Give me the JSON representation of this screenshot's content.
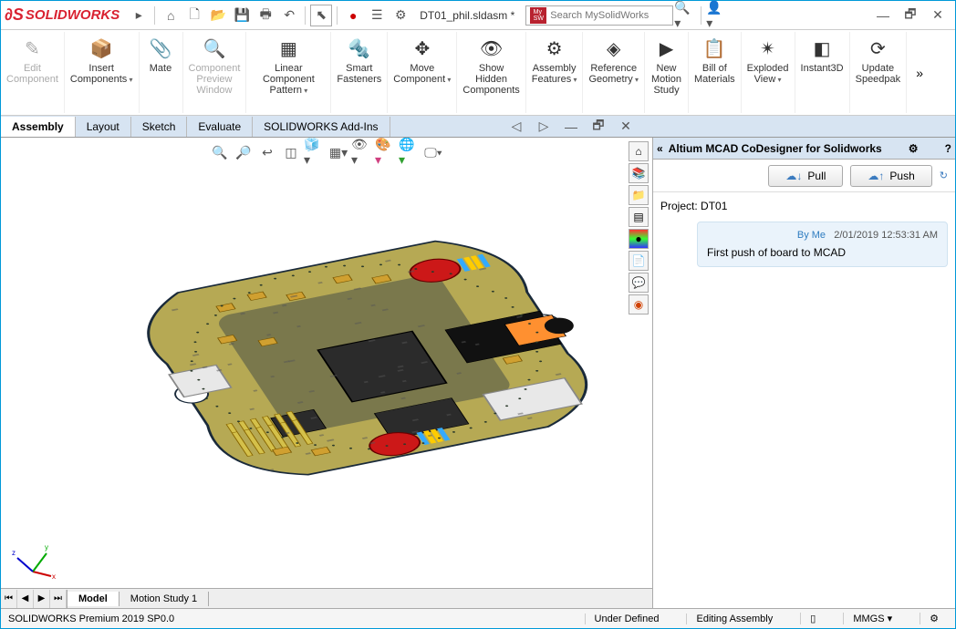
{
  "app": {
    "brand": "SOLIDWORKS",
    "filename": "DT01_phil.sldasm *",
    "search_placeholder": "Search MySolidWorks"
  },
  "ribbon": [
    {
      "label": "Edit\nComponent",
      "icon": "✎",
      "disabled": true
    },
    {
      "label": "Insert\nComponents",
      "icon": "📦",
      "arrow": true
    },
    {
      "label": "Mate",
      "icon": "📎"
    },
    {
      "label": "Component\nPreview\nWindow",
      "icon": "🔍",
      "disabled": true
    },
    {
      "label": "Linear Component\nPattern",
      "icon": "▦",
      "arrow": true
    },
    {
      "label": "Smart\nFasteners",
      "icon": "🔩"
    },
    {
      "label": "Move\nComponent",
      "icon": "✥",
      "arrow": true
    },
    {
      "label": "Show\nHidden\nComponents",
      "icon": "👁"
    },
    {
      "label": "Assembly\nFeatures",
      "icon": "⚙",
      "arrow": true
    },
    {
      "label": "Reference\nGeometry",
      "icon": "◈",
      "arrow": true
    },
    {
      "label": "New\nMotion\nStudy",
      "icon": "▶"
    },
    {
      "label": "Bill of\nMaterials",
      "icon": "📋"
    },
    {
      "label": "Exploded\nView",
      "icon": "✴",
      "arrow": true
    },
    {
      "label": "Instant3D",
      "icon": "◧"
    },
    {
      "label": "Update\nSpeedpak",
      "icon": "⟳"
    }
  ],
  "tabs": [
    "Assembly",
    "Layout",
    "Sketch",
    "Evaluate",
    "SOLIDWORKS Add-Ins"
  ],
  "active_tab": "Assembly",
  "bottom_tabs": [
    "Model",
    "Motion Study 1"
  ],
  "active_bottom_tab": "Model",
  "panel": {
    "title": "Altium MCAD CoDesigner for Solidworks",
    "pull_label": "Pull",
    "push_label": "Push",
    "project_label": "Project:",
    "project_name": "DT01",
    "message": {
      "by": "By Me",
      "time": "2/01/2019 12:53:31 AM",
      "text": "First push of board to MCAD"
    }
  },
  "status": {
    "version": "SOLIDWORKS Premium 2019 SP0.0",
    "defined": "Under Defined",
    "mode": "Editing Assembly",
    "units": "MMGS"
  },
  "pcb": {
    "board_color": "#b6a954",
    "board_stroke": "#1a2a3a",
    "chip_color": "#2b2b2b",
    "coil_color": "#cc1818",
    "connector_color": "#e8e8e8",
    "gold_pin_color": "#d4c04a",
    "capacitor_color": "#d0a030"
  }
}
